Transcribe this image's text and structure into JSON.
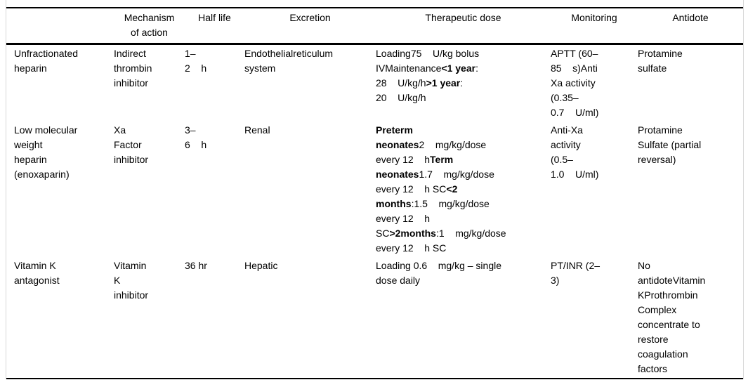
{
  "colors": {
    "background": "#ffffff",
    "text": "#000000",
    "rule": "#000000",
    "frame_border": "#d8d8d8"
  },
  "table": {
    "headers": {
      "drug": "",
      "mechanism": "Mechanism\nof action",
      "half_life": "Half life",
      "excretion": "Excretion",
      "dose": "Therapeutic dose",
      "monitoring": "Monitoring",
      "antidote": "Antidote"
    },
    "rows": [
      {
        "cells": [
          [
            {
              "text": "Unfractionated\nheparin"
            }
          ],
          [
            {
              "text": "Indirect\nthrombin\ninhibitor"
            }
          ],
          [
            {
              "text": "1–\n2    h"
            }
          ],
          [
            {
              "text": "Endothelialreticulum\nsystem"
            }
          ],
          [
            {
              "text": "Loading75    U/kg bolus\nIVMaintenance"
            },
            {
              "text": "<1 year",
              "bold": true
            },
            {
              "text": ":\n28    U/kg/h"
            },
            {
              "text": ">1 year",
              "bold": true
            },
            {
              "text": ":\n20    U/kg/h"
            }
          ],
          [
            {
              "text": "APTT (60–\n85    s)Anti\nXa activity\n(0.35–\n0.7    U/ml)"
            }
          ],
          [
            {
              "text": "Protamine\nsulfate"
            }
          ]
        ]
      },
      {
        "cells": [
          [
            {
              "text": "Low molecular\nweight\nheparin\n(enoxaparin)"
            }
          ],
          [
            {
              "text": "Xa\nFactor\ninhibitor"
            }
          ],
          [
            {
              "text": "3–\n6    h"
            }
          ],
          [
            {
              "text": "Renal"
            }
          ],
          [
            {
              "text": "Preterm\nneonates",
              "bold": true
            },
            {
              "text": "2    mg/kg/dose\nevery 12    h"
            },
            {
              "text": "Term\nneonates",
              "bold": true
            },
            {
              "text": "1.7    mg/kg/dose\nevery 12    h SC"
            },
            {
              "text": "<2\nmonths",
              "bold": true
            },
            {
              "text": ":1.5    mg/kg/dose\nevery 12    h\nSC"
            },
            {
              "text": ">2months",
              "bold": true
            },
            {
              "text": ":1    mg/kg/dose\nevery 12    h SC"
            }
          ],
          [
            {
              "text": "Anti-Xa\nactivity\n(0.5–\n1.0    U/ml)"
            }
          ],
          [
            {
              "text": "Protamine\nSulfate (partial\nreversal)"
            }
          ]
        ]
      },
      {
        "cells": [
          [
            {
              "text": "Vitamin K\nantagonist"
            }
          ],
          [
            {
              "text": "Vitamin\nK\ninhibitor"
            }
          ],
          [
            {
              "text": "36 hr"
            }
          ],
          [
            {
              "text": "Hepatic"
            }
          ],
          [
            {
              "text": "Loading 0.6    mg/kg – single\ndose daily"
            }
          ],
          [
            {
              "text": "PT/INR (2–\n3)"
            }
          ],
          [
            {
              "text": "No\nantidoteVitamin\nKProthrombin\nComplex\nconcentrate to\nrestore\ncoagulation\nfactors"
            }
          ]
        ]
      }
    ]
  }
}
